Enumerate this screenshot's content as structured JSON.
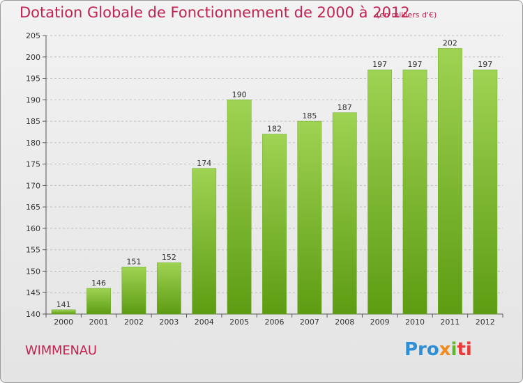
{
  "header": {
    "title": "Dotation Globale de Fonctionnement de 2000 à 2012",
    "unit": "(en milliers d'€)"
  },
  "footer": {
    "commune": "WIMMENAU",
    "brand": {
      "text": "Proxiti",
      "parts": [
        "Pro",
        "x",
        "i",
        "ti"
      ],
      "colors": [
        "#2f8fd6",
        "#f08a1c",
        "#5fb52b",
        "#e83a3a"
      ]
    }
  },
  "chart_data": {
    "type": "bar",
    "title": "Dotation Globale de Fonctionnement de 2000 à 2012",
    "subtitle": "(en milliers d'€)",
    "xlabel": "",
    "ylabel": "",
    "categories": [
      "2000",
      "2001",
      "2002",
      "2003",
      "2004",
      "2005",
      "2006",
      "2007",
      "2008",
      "2009",
      "2010",
      "2011",
      "2012"
    ],
    "values": [
      141,
      146,
      151,
      152,
      174,
      190,
      182,
      185,
      187,
      197,
      197,
      202,
      197
    ],
    "ylim": [
      140,
      205
    ],
    "yticks": [
      140,
      145,
      150,
      155,
      160,
      165,
      170,
      175,
      180,
      185,
      190,
      195,
      200,
      205
    ],
    "grid": true,
    "legend": "none",
    "bar_color_top": "#9fd353",
    "bar_color_bottom": "#5d9c12",
    "grid_color": "#bfbfbf"
  }
}
